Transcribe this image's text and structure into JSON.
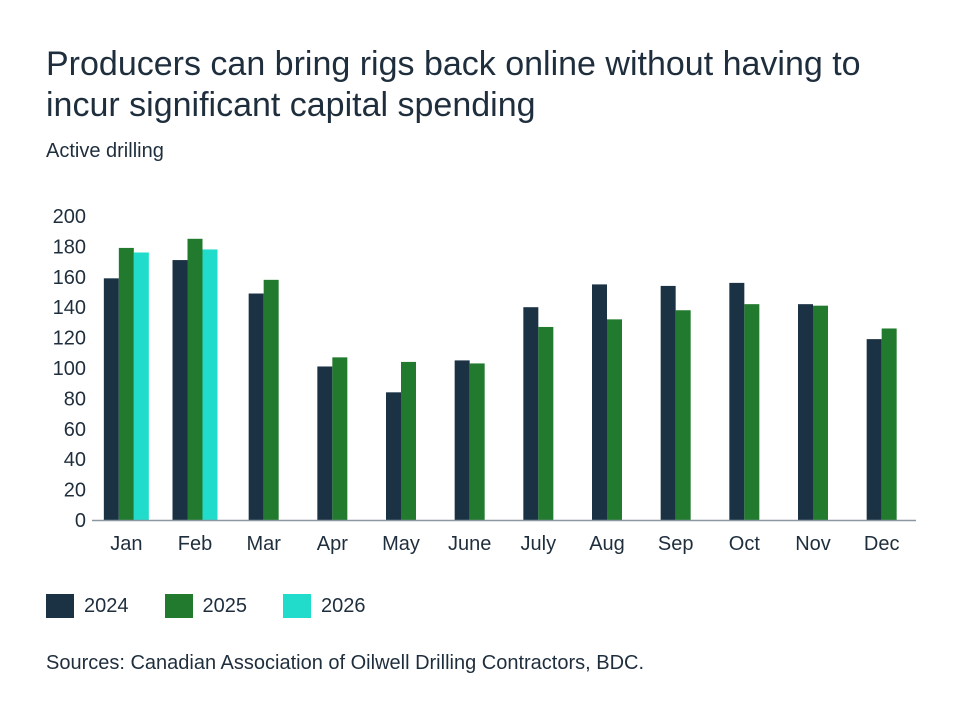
{
  "title": "Producers can bring rigs back online without having to incur significant capital spending",
  "subtitle": "Active drilling",
  "source": "Sources: Canadian Association of Oilwell Drilling Contractors, BDC.",
  "chart_data": {
    "type": "bar",
    "categories": [
      "Jan",
      "Feb",
      "Mar",
      "Apr",
      "May",
      "June",
      "July",
      "Aug",
      "Sep",
      "Oct",
      "Nov",
      "Dec"
    ],
    "series": [
      {
        "name": "2024",
        "color": "#1b3245",
        "values": [
          159,
          171,
          149,
          101,
          84,
          105,
          140,
          155,
          154,
          156,
          142,
          119
        ]
      },
      {
        "name": "2025",
        "color": "#217a2e",
        "values": [
          179,
          185,
          158,
          107,
          104,
          103,
          127,
          132,
          138,
          142,
          141,
          126
        ]
      },
      {
        "name": "2026",
        "color": "#22dccb",
        "values": [
          176,
          178,
          null,
          null,
          null,
          null,
          null,
          null,
          null,
          null,
          null,
          null
        ]
      }
    ],
    "yticks": [
      "0",
      "20",
      "40",
      "60",
      "80",
      "100",
      "120",
      "140",
      "160",
      "180",
      "200"
    ],
    "ylim": [
      0,
      200
    ],
    "xlabel": "",
    "ylabel": "",
    "legend_position": "bottom-left",
    "grid": false
  }
}
